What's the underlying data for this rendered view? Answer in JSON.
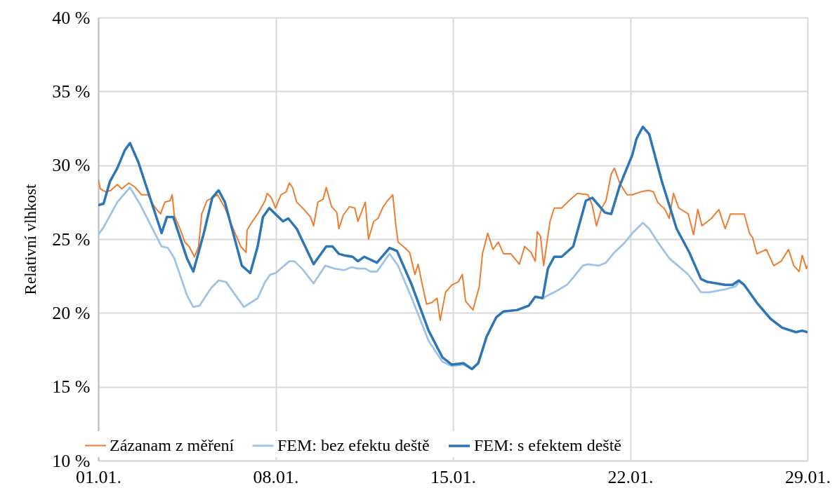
{
  "chart_data": {
    "type": "line",
    "ylabel": "Relativní vlhkost",
    "xlim": [
      "--01-01",
      "--01-29"
    ],
    "ylim": [
      10,
      40
    ],
    "xticks": [
      {
        "value": "--01-01",
        "label": "01.01."
      },
      {
        "value": "--01-08",
        "label": "08.01."
      },
      {
        "value": "--01-15",
        "label": "15.01."
      },
      {
        "value": "--01-22",
        "label": "22.01."
      },
      {
        "value": "--01-29",
        "label": "29.01."
      }
    ],
    "yticks": [
      {
        "value": 10,
        "label": "10 %"
      },
      {
        "value": 15,
        "label": "15 %"
      },
      {
        "value": 20,
        "label": "20 %"
      },
      {
        "value": 25,
        "label": "25 %"
      },
      {
        "value": 30,
        "label": "30 %"
      },
      {
        "value": 35,
        "label": "35 %"
      },
      {
        "value": 40,
        "label": "40 %"
      }
    ],
    "grid": true,
    "legend": "bottom",
    "marker": "none",
    "line_style": "solid",
    "series": [
      {
        "name": "Zázanam z měření",
        "color": "#ed7d31",
        "x": [
          "--01-01T00:00",
          "--01-01T02:00",
          "--01-01T07:00",
          "--01-01T12:00",
          "--01-01T18:00",
          "--01-01T22:00",
          "--01-02T05:00",
          "--01-02T11:00",
          "--01-02T17:00",
          "--01-02T23:00",
          "--01-03T05:00",
          "--01-03T11:00",
          "--01-03T15:00",
          "--01-03T20:00",
          "--01-03T22:00",
          "--01-04T00:00",
          "--01-04T06:00",
          "--01-04T10:00",
          "--01-04T14:00",
          "--01-04T19:00",
          "--01-04T23:00",
          "--01-05T02:00",
          "--01-05T07:00",
          "--01-05T12:00",
          "--01-05T17:00",
          "--01-06T00:00",
          "--01-06T06:00",
          "--01-06T12:00",
          "--01-06T15:00",
          "--01-06T20:00",
          "--01-06T21:00",
          "--01-07T02:00",
          "--01-07T07:00",
          "--01-07T14:00",
          "--01-07T16:00",
          "--01-07T20:00",
          "--01-08T00:00",
          "--01-08T05:00",
          "--01-08T10:00",
          "--01-08T13:00",
          "--01-08T16:00",
          "--01-08T20:00",
          "--01-09T03:00",
          "--01-09T09:00",
          "--01-09T12:00",
          "--01-09T16:00",
          "--01-09T21:00",
          "--01-10T00:00",
          "--01-10T05:00",
          "--01-10T10:00",
          "--01-10T12:00",
          "--01-10T16:00",
          "--01-10T22:00",
          "--01-11T03:00",
          "--01-11T06:00",
          "--01-11T13:00",
          "--01-11T16:00",
          "--01-11T21:00",
          "--01-12T01:00",
          "--01-12T06:00",
          "--01-12T10:00",
          "--01-12T15:00",
          "--01-12T18:00",
          "--01-12T20:00",
          "--01-13T01:00",
          "--01-13T07:00",
          "--01-13T12:00",
          "--01-13T15:00",
          "--01-13T19:00",
          "--01-13T23:00",
          "--01-14T04:00",
          "--01-14T09:00",
          "--01-14T12:00",
          "--01-14T17:00",
          "--01-14T23:00",
          "--01-15T05:00",
          "--01-15T09:00",
          "--01-15T12:00",
          "--01-15T19:00",
          "--01-16T01:00",
          "--01-16T04:00",
          "--01-16T09:00",
          "--01-16T14:00",
          "--01-16T19:00",
          "--01-17T00:00",
          "--01-17T07:00",
          "--01-17T15:00",
          "--01-17T20:00",
          "--01-18T02:00",
          "--01-18T06:00",
          "--01-18T08:00",
          "--01-18T11:00",
          "--01-18T14:00",
          "--01-18T20:00",
          "--01-19T00:00",
          "--01-19T07:00",
          "--01-19T14:00",
          "--01-19T22:00",
          "--01-20T08:00",
          "--01-20T12:00",
          "--01-20T16:00",
          "--01-20T21:00",
          "--01-21T01:00",
          "--01-21T06:00",
          "--01-21T09:00",
          "--01-21T14:00",
          "--01-21T21:00",
          "--01-22T02:00",
          "--01-22T10:00",
          "--01-22T17:00",
          "--01-22T22:00",
          "--01-23T02:00",
          "--01-23T09:00",
          "--01-23T13:00",
          "--01-23T17:00",
          "--01-23T22:00",
          "--01-24T07:00",
          "--01-24T12:00",
          "--01-24T16:00",
          "--01-24T20:00",
          "--01-25T05:00",
          "--01-25T12:00",
          "--01-25T18:00",
          "--01-25T23:00",
          "--01-26T12:00",
          "--01-26T17:00",
          "--01-26T20:00",
          "--01-27T00:00",
          "--01-27T03:00",
          "--01-27T09:00",
          "--01-27T16:00",
          "--01-27T23:00",
          "--01-28T06:00",
          "--01-28T11:00",
          "--01-28T16:00",
          "--01-28T19:00",
          "--01-28T23:00",
          "--01-29T00:00"
        ],
        "values": [
          29.0,
          28.4,
          28.2,
          28.3,
          28.7,
          28.4,
          28.8,
          28.5,
          28.0,
          28.0,
          27.2,
          26.7,
          27.5,
          27.6,
          28.0,
          26.6,
          25.6,
          24.8,
          24.5,
          23.8,
          24.5,
          26.7,
          27.6,
          27.8,
          28.0,
          27.1,
          26.0,
          25.0,
          24.5,
          24.1,
          25.6,
          26.2,
          26.7,
          27.6,
          28.1,
          27.8,
          27.1,
          28.0,
          28.2,
          28.8,
          28.5,
          27.5,
          27.0,
          26.5,
          25.9,
          27.5,
          27.7,
          28.5,
          27.2,
          26.8,
          25.7,
          26.6,
          27.2,
          27.1,
          26.2,
          27.5,
          25.0,
          26.2,
          26.4,
          27.2,
          27.6,
          28.0,
          25.9,
          24.8,
          24.5,
          24.1,
          22.6,
          23.3,
          21.9,
          20.6,
          20.7,
          21.0,
          19.5,
          21.4,
          21.9,
          22.1,
          22.6,
          20.8,
          20.2,
          21.8,
          24.0,
          25.4,
          24.3,
          24.8,
          24.0,
          24.0,
          23.3,
          24.5,
          24.1,
          23.5,
          25.5,
          25.2,
          23.2,
          26.2,
          27.1,
          27.1,
          27.6,
          28.1,
          28.0,
          27.3,
          25.9,
          27.1,
          27.6,
          29.4,
          29.8,
          28.8,
          28.0,
          28.0,
          28.2,
          28.3,
          28.2,
          27.5,
          27.0,
          26.4,
          28.1,
          27.1,
          26.7,
          25.3,
          27.0,
          25.9,
          26.4,
          27.0,
          25.7,
          26.7,
          26.7,
          25.4,
          25.1,
          24.0,
          24.1,
          24.3,
          23.2,
          23.5,
          24.3,
          23.2,
          22.8,
          23.9,
          23.0,
          23.2
        ]
      },
      {
        "name": "FEM: bez efektu deště",
        "color": "#9dc3e6",
        "x": [
          "--01-01T00:00",
          "--01-01T05:00",
          "--01-01T18:00",
          "--01-02T06:00",
          "--01-02T16:00",
          "--01-03T12:00",
          "--01-03T18:00",
          "--01-04T00:00",
          "--01-04T12:00",
          "--01-04T18:00",
          "--01-05T00:00",
          "--01-05T11:00",
          "--01-05T18:00",
          "--01-06T01:00",
          "--01-06T18:00",
          "--01-07T07:00",
          "--01-07T14:00",
          "--01-07T19:00",
          "--01-08T00:00",
          "--01-08T13:00",
          "--01-08T18:00",
          "--01-09T01:00",
          "--01-09T12:00",
          "--01-09T23:00",
          "--01-10T08:00",
          "--01-10T17:00",
          "--01-11T00:00",
          "--01-11T06:00",
          "--01-11T13:00",
          "--01-11T18:00",
          "--01-12T00:00",
          "--01-12T12:00",
          "--01-12T20:00",
          "--01-13T09:00",
          "--01-14T01:00",
          "--01-14T14:00",
          "--01-14T23:00",
          "--01-15T10:00",
          "--01-15T18:00",
          "--01-16T00:00",
          "--01-16T08:00",
          "--01-16T17:00",
          "--01-17T00:00",
          "--01-17T13:00",
          "--01-18T00:00",
          "--01-18T06:00",
          "--01-18T13:00",
          "--01-19T00:00",
          "--01-19T12:00",
          "--01-19T18:00",
          "--01-20T03:00",
          "--01-20T08:00",
          "--01-20T18:00",
          "--01-21T01:00",
          "--01-21T09:00",
          "--01-21T18:00",
          "--01-22T02:00",
          "--01-22T12:00",
          "--01-22T18:00",
          "--01-23T02:00",
          "--01-23T13:00",
          "--01-24T07:00",
          "--01-24T19:00",
          "--01-25T03:00",
          "--01-25T18:00",
          "--01-26T04:00",
          "--01-26T07:00",
          "--01-26T12:00",
          "--01-27T01:00",
          "--01-27T13:00",
          "--01-28T00:00",
          "--01-28T13:00",
          "--01-28T19:00",
          "--01-29T00:00"
        ],
        "values": [
          25.3,
          25.8,
          27.5,
          28.5,
          27.3,
          24.5,
          24.4,
          23.7,
          21.2,
          20.4,
          20.5,
          21.7,
          22.2,
          22.1,
          20.4,
          21.0,
          22.1,
          22.6,
          22.7,
          23.5,
          23.5,
          23.0,
          22.0,
          23.2,
          23.0,
          22.9,
          23.1,
          23.0,
          23.0,
          22.8,
          22.8,
          24.0,
          23.2,
          21.0,
          18.1,
          16.7,
          16.4,
          16.5,
          16.2,
          16.6,
          18.4,
          19.7,
          20.1,
          20.2,
          20.5,
          21.1,
          21.0,
          21.4,
          21.9,
          22.4,
          23.2,
          23.3,
          23.2,
          23.4,
          24.1,
          24.7,
          25.4,
          26.1,
          25.7,
          24.8,
          23.7,
          22.6,
          21.4,
          21.4,
          21.6,
          21.8,
          22.1,
          21.9,
          20.6,
          19.6,
          19.0,
          18.7,
          18.8,
          18.7
        ]
      },
      {
        "name": "FEM: s efektem deště",
        "color": "#2e75b6",
        "x": [
          "--01-01T00:00",
          "--01-01T05:00",
          "--01-01T11:00",
          "--01-01T18:00",
          "--01-02T01:00",
          "--01-02T06:00",
          "--01-02T14:00",
          "--01-03T12:00",
          "--01-03T17:00",
          "--01-03T23:00",
          "--01-04T12:00",
          "--01-04T18:00",
          "--01-05T04:00",
          "--01-05T12:00",
          "--01-05T18:00",
          "--01-06T00:00",
          "--01-06T16:00",
          "--01-07T00:00",
          "--01-07T07:00",
          "--01-07T12:00",
          "--01-07T18:00",
          "--01-08T07:00",
          "--01-08T12:00",
          "--01-08T20:00",
          "--01-09T12:00",
          "--01-10T00:00",
          "--01-10T06:00",
          "--01-10T12:00",
          "--01-10T17:00",
          "--01-11T01:00",
          "--01-11T06:00",
          "--01-11T12:00",
          "--01-12T00:00",
          "--01-12T12:00",
          "--01-12T19:00",
          "--01-13T09:00",
          "--01-14T01:00",
          "--01-14T14:00",
          "--01-14T23:00",
          "--01-15T10:00",
          "--01-15T18:00",
          "--01-16T00:00",
          "--01-16T08:00",
          "--01-16T17:00",
          "--01-17T00:00",
          "--01-17T13:00",
          "--01-18T00:00",
          "--01-18T06:00",
          "--01-18T13:00",
          "--01-18T18:00",
          "--01-19T00:00",
          "--01-19T07:00",
          "--01-19T18:00",
          "--01-20T06:00",
          "--01-20T12:00",
          "--01-21T00:00",
          "--01-21T06:00",
          "--01-21T14:00",
          "--01-22T02:00",
          "--01-22T06:00",
          "--01-22T12:00",
          "--01-22T18:00",
          "--01-23T06:00",
          "--01-23T20:00",
          "--01-24T08:00",
          "--01-24T19:00",
          "--01-25T01:00",
          "--01-25T10:00",
          "--01-25T18:00",
          "--01-26T01:00",
          "--01-26T07:00",
          "--01-26T12:00",
          "--01-27T01:00",
          "--01-27T13:00",
          "--01-28T00:00",
          "--01-28T13:00",
          "--01-28T19:00",
          "--01-29T00:00"
        ],
        "values": [
          27.3,
          27.4,
          28.9,
          29.8,
          31.0,
          31.5,
          30.2,
          25.4,
          26.5,
          26.5,
          23.7,
          22.8,
          25.4,
          27.8,
          28.3,
          27.5,
          23.2,
          22.7,
          24.5,
          26.5,
          27.1,
          26.2,
          26.4,
          25.7,
          23.3,
          24.5,
          24.5,
          24.0,
          23.9,
          23.8,
          23.5,
          23.8,
          23.4,
          24.4,
          24.2,
          21.9,
          18.8,
          17.0,
          16.5,
          16.6,
          16.2,
          16.6,
          18.4,
          19.7,
          20.1,
          20.2,
          20.5,
          21.1,
          21.0,
          23.0,
          23.8,
          23.8,
          24.5,
          27.6,
          27.8,
          26.8,
          26.7,
          28.6,
          30.7,
          31.8,
          32.6,
          32.1,
          28.9,
          25.7,
          24.1,
          22.3,
          22.1,
          22.0,
          21.9,
          21.9,
          22.2,
          21.9,
          20.6,
          19.6,
          19.0,
          18.7,
          18.8,
          18.7
        ]
      }
    ]
  }
}
